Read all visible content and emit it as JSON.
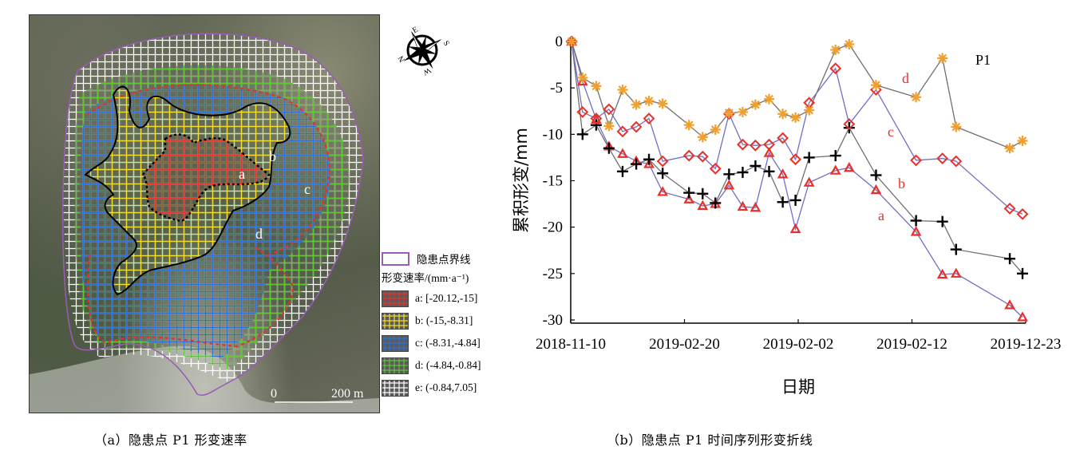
{
  "panel_a": {
    "caption": "（a）隐患点 P1 形变速率",
    "map_labels": [
      "a",
      "b",
      "c",
      "d"
    ],
    "scale_bar": {
      "start": "0",
      "end": "200 m"
    },
    "compass": {
      "n": "N",
      "e": "E",
      "s": "S",
      "w": "W",
      "icon": "compass-rose-icon"
    },
    "legend": {
      "boundary_label": "隐患点界线",
      "title": "形变速率/(mm·a⁻¹)",
      "items": [
        {
          "key": "a",
          "label": "a: [-20.12,-15]",
          "color": "#e8302a"
        },
        {
          "key": "b",
          "label": "b: (-15,-8.31]",
          "color": "#f2df2a"
        },
        {
          "key": "c",
          "label": "c: (-8.31,-4.84]",
          "color": "#2f6fd1"
        },
        {
          "key": "d",
          "label": "d: (-4.84,-0.84]",
          "color": "#62c23a"
        },
        {
          "key": "e",
          "label": "e: (-0.84,7.05]",
          "color": "#ffffff"
        }
      ],
      "boundary_color": "#9a5bb5"
    }
  },
  "panel_b": {
    "caption": "（b）隐患点 P1 时间序列形变折线"
  },
  "chart_data": {
    "type": "line",
    "title": "P1",
    "xlabel": "日期",
    "ylabel": "累积形变/mm",
    "ylim": [
      -30,
      0
    ],
    "yticks": [
      0,
      -5,
      -10,
      -15,
      -20,
      -25,
      -30
    ],
    "xticks": [
      {
        "pos": 0.0,
        "label": "2018-11-10"
      },
      {
        "pos": 0.25,
        "label": "2019-02-20"
      },
      {
        "pos": 0.5,
        "label": "2019-02-02"
      },
      {
        "pos": 0.75,
        "label": "2019-02-12"
      },
      {
        "pos": 1.0,
        "label": "2019-12-23"
      }
    ],
    "x_note": "x given as fraction of time axis (0 = 2018-11-10, 1 = 2019-12-23)",
    "x": [
      0.002,
      0.026,
      0.056,
      0.084,
      0.114,
      0.144,
      0.172,
      0.202,
      0.26,
      0.29,
      0.318,
      0.348,
      0.378,
      0.406,
      0.436,
      0.466,
      0.494,
      0.524,
      0.582,
      0.612,
      0.671,
      0.759,
      0.817,
      0.847,
      0.965,
      0.993
    ],
    "grid": false,
    "series": [
      {
        "name": "a",
        "marker": "triangle",
        "color": "#e8302a",
        "line_color": "#6f6fc8",
        "values": [
          0,
          -4.3,
          -8.4,
          -11.3,
          -12.1,
          -12.9,
          -13.2,
          -16.2,
          -17.0,
          -17.7,
          -17.5,
          -15.5,
          -17.8,
          -17.9,
          -12.0,
          -14.3,
          -20.2,
          -15.2,
          -13.9,
          -13.6,
          -16.0,
          -20.5,
          -25.1,
          -25.0,
          -28.4,
          -29.7
        ]
      },
      {
        "name": "b",
        "marker": "plus",
        "color": "#000000",
        "line_color": "#707070",
        "values": [
          0,
          -10.0,
          -9.0,
          -11.5,
          -14.0,
          -13.2,
          -12.7,
          -14.2,
          -16.3,
          -16.4,
          -17.4,
          -14.3,
          -14.1,
          -13.4,
          -14.0,
          -17.3,
          -17.1,
          -12.5,
          -12.3,
          -9.3,
          -14.4,
          -19.3,
          -19.4,
          -22.4,
          -23.4,
          -25.0
        ]
      },
      {
        "name": "c",
        "marker": "diamond",
        "color": "#e8302a",
        "line_color": "#6f6fc8",
        "values": [
          0,
          -7.6,
          -8.3,
          -7.3,
          -9.7,
          -9.2,
          -8.3,
          -12.9,
          -12.3,
          -12.4,
          -13.7,
          -7.8,
          -11.1,
          -11.2,
          -11.1,
          -10.4,
          -12.7,
          -6.6,
          -2.9,
          -8.9,
          -5.2,
          -12.8,
          -12.6,
          -12.9,
          -18.0,
          -18.6
        ]
      },
      {
        "name": "d",
        "marker": "star",
        "color": "#f0a030",
        "line_color": "#707070",
        "values": [
          0,
          -3.9,
          -4.8,
          -9.1,
          -5.2,
          -6.8,
          -6.4,
          -6.7,
          -9.0,
          -10.3,
          -9.5,
          -7.7,
          -7.6,
          -6.8,
          -6.2,
          -7.8,
          -8.2,
          -7.4,
          -0.9,
          -0.3,
          -4.7,
          -6.0,
          -1.8,
          -9.2,
          -11.5,
          -10.7
        ]
      }
    ],
    "annotations": [
      {
        "text": "a",
        "near_series": "a",
        "color": "#e8302a"
      },
      {
        "text": "b",
        "near_series": "b",
        "color": "#e8302a"
      },
      {
        "text": "c",
        "near_series": "c",
        "color": "#e8302a"
      },
      {
        "text": "d",
        "near_series": "d",
        "color": "#e8302a"
      }
    ]
  }
}
